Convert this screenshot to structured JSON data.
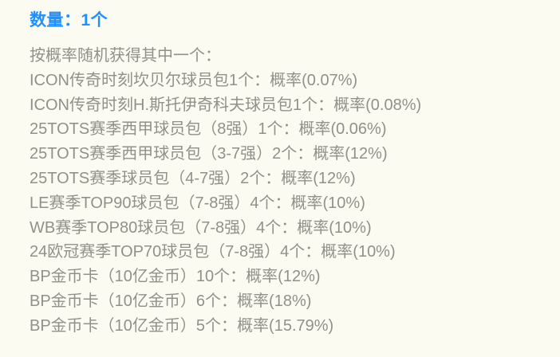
{
  "page": {
    "background_color": "#FBFBF2",
    "text_color": "#91908A",
    "accent_color": "#1E90FF"
  },
  "header": {
    "quantity_label": "数量：1个"
  },
  "intro": {
    "text": "按概率随机获得其中一个："
  },
  "items": [
    {
      "label": "ICON传奇时刻坎贝尔球员包1个：",
      "probability": "概率(0.07%)",
      "probability_value": "0.07%"
    },
    {
      "label": "ICON传奇时刻H.斯托伊奇科夫球员包1个：",
      "probability": "概率(0.08%)",
      "probability_value": "0.08%"
    },
    {
      "label": "25TOTS赛季西甲球员包（8强）1个：",
      "probability": "概率(0.06%)",
      "probability_value": "0.06%"
    },
    {
      "label": "25TOTS赛季西甲球员包（3-7强）2个：",
      "probability": "概率(12%)",
      "probability_value": "12%"
    },
    {
      "label": "25TOTS赛季球员包（4-7强）2个：",
      "probability": "概率(12%)",
      "probability_value": "12%"
    },
    {
      "label": "LE赛季TOP90球员包（7-8强）4个：",
      "probability": "概率(10%)",
      "probability_value": "10%"
    },
    {
      "label": "WB赛季TOP80球员包（7-8强）4个：",
      "probability": "概率(10%)",
      "probability_value": "10%"
    },
    {
      "label": "24欧冠赛季TOP70球员包（7-8强）4个：",
      "probability": "概率(10%)",
      "probability_value": "10%"
    },
    {
      "label": "BP金币卡（10亿金币）10个：",
      "probability": "概率(12%)",
      "probability_value": "12%"
    },
    {
      "label": "BP金币卡（10亿金币）6个：",
      "probability": "概率(18%)",
      "probability_value": "18%"
    },
    {
      "label": "BP金币卡（10亿金币）5个：",
      "probability": "概率(15.79%)",
      "probability_value": "15.79%"
    }
  ]
}
